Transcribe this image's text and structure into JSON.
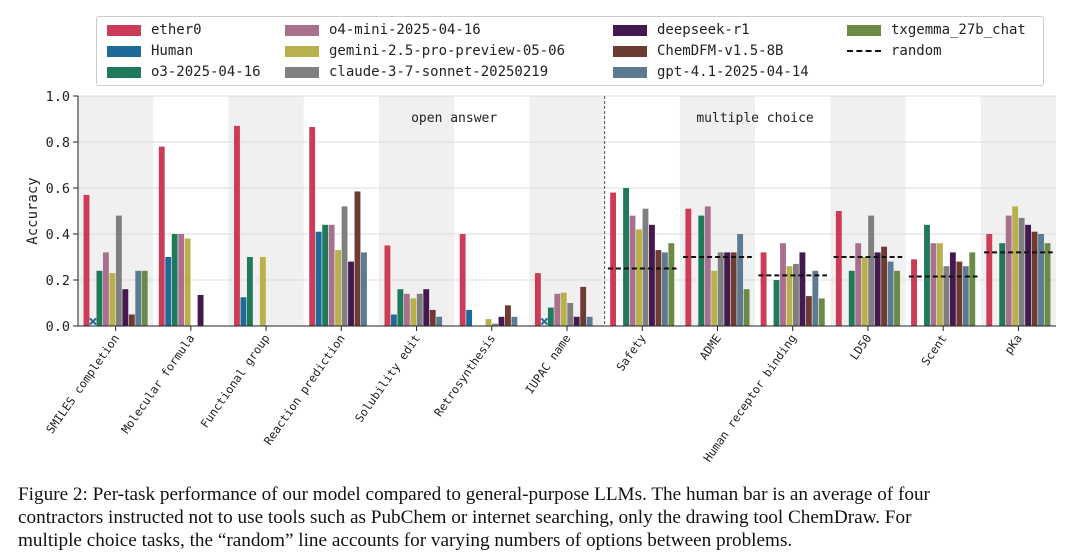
{
  "chart_data": {
    "type": "bar",
    "ylabel": "Accuracy",
    "ylim": [
      0,
      1.0
    ],
    "yticks": [
      "0.0",
      "0.2",
      "0.4",
      "0.6",
      "0.8",
      "1.0"
    ],
    "grid": "horizontal",
    "legend_position": "top",
    "group_labels": [
      "open answer",
      "multiple choice"
    ],
    "categories": [
      "SMILES completion",
      "Molecular formula",
      "Functional group",
      "Reaction prediction",
      "Solubility edit",
      "Retrosynthesis",
      "IUPAC name",
      "Safety",
      "ADME",
      "Human receptor binding",
      "LD50",
      "Scent",
      "pKa"
    ],
    "series": [
      {
        "name": "ether0",
        "color": "#cc3b57",
        "values": [
          0.57,
          0.78,
          0.87,
          0.865,
          0.35,
          0.4,
          0.23,
          0.58,
          0.51,
          0.32,
          0.5,
          0.29,
          0.4
        ]
      },
      {
        "name": "Human",
        "color": "#1e6b9a",
        "values": [
          0.02,
          0.3,
          0.125,
          0.41,
          0.05,
          0.07,
          0.02,
          null,
          null,
          null,
          null,
          null,
          null
        ]
      },
      {
        "name": "o3-2025-04-16",
        "color": "#1f7a5a",
        "values": [
          0.24,
          0.4,
          0.3,
          0.44,
          0.16,
          0.0,
          0.08,
          0.6,
          0.48,
          0.2,
          0.24,
          0.44,
          0.36
        ]
      },
      {
        "name": "o4-mini-2025-04-16",
        "color": "#a8708e",
        "values": [
          0.32,
          0.4,
          0.0,
          0.44,
          0.14,
          0.0,
          0.14,
          0.48,
          0.52,
          0.36,
          0.36,
          0.36,
          0.48
        ]
      },
      {
        "name": "gemini-2.5-pro-preview-05-06",
        "color": "#b8b04a",
        "values": [
          0.23,
          0.38,
          0.3,
          0.33,
          0.12,
          0.03,
          0.145,
          0.42,
          0.24,
          0.26,
          0.3,
          0.36,
          0.52
        ]
      },
      {
        "name": "claude-3-7-sonnet-20250219",
        "color": "#7f7f7f",
        "values": [
          0.48,
          0.0,
          0.0,
          0.52,
          0.14,
          0.01,
          0.1,
          0.51,
          0.32,
          0.27,
          0.48,
          0.26,
          0.47
        ]
      },
      {
        "name": "deepseek-r1",
        "color": "#43194f",
        "values": [
          0.16,
          0.135,
          0.0,
          0.28,
          0.16,
          0.04,
          0.04,
          0.44,
          0.32,
          0.32,
          0.32,
          0.32,
          0.44
        ]
      },
      {
        "name": "ChemDFM-v1.5-8B",
        "color": "#6e3b32",
        "values": [
          0.05,
          0.0,
          0.0,
          0.585,
          0.07,
          0.09,
          0.17,
          0.33,
          0.32,
          0.13,
          0.345,
          0.28,
          0.41
        ]
      },
      {
        "name": "gpt-4.1-2025-04-14",
        "color": "#5b7b92",
        "values": [
          0.24,
          0.0,
          0.0,
          0.32,
          0.04,
          0.04,
          0.04,
          0.32,
          0.4,
          0.24,
          0.28,
          0.26,
          0.4
        ]
      },
      {
        "name": "txgemma_27b_chat",
        "color": "#6b8a45",
        "values": [
          0.24,
          0.0,
          0.0,
          0.0,
          0.0,
          0.0,
          0.0,
          0.36,
          0.16,
          0.12,
          0.24,
          0.32,
          0.36
        ]
      }
    ],
    "random": {
      "name": "random",
      "values": [
        null,
        null,
        null,
        null,
        null,
        null,
        null,
        0.25,
        0.3,
        0.22,
        0.3,
        0.215,
        0.32
      ]
    }
  },
  "caption": {
    "line1": "Figure 2: Per-task performance of our model compared to general-purpose LLMs. The human bar is an average of four",
    "line2": "contractors instructed not to use tools such as PubChem or internet searching, only the drawing tool ChemDraw. For",
    "line3": "multiple choice tasks, the “random” line accounts for varying numbers of options between problems."
  }
}
